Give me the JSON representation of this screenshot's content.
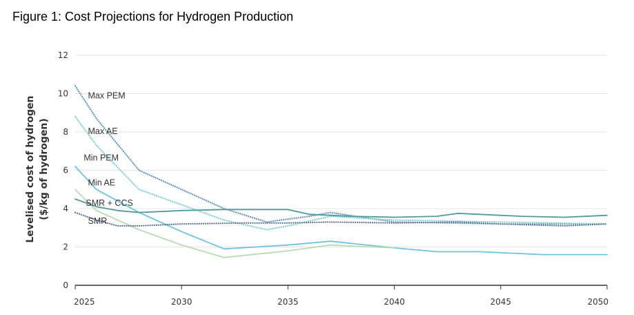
{
  "figure": {
    "title": "Figure 1: Cost Projections for Hydrogen Production"
  },
  "chart_data": {
    "type": "line",
    "title": "Figure 1: Cost Projections for Hydrogen Production",
    "xlabel": "",
    "ylabel": "Levelised cost of hydrogen",
    "ylabel_units": "($/kg of hydrogen)",
    "xlim": [
      2025,
      2050
    ],
    "ylim": [
      0,
      12
    ],
    "xticks": [
      2025,
      2030,
      2035,
      2040,
      2045,
      2050
    ],
    "yticks": [
      0,
      2,
      4,
      6,
      8,
      10,
      12
    ],
    "grid": "horizontal",
    "series": [
      {
        "name": "Max PEM",
        "color": "#5b8fbf",
        "style": "dotted",
        "x": [
          2025,
          2026,
          2028,
          2030,
          2032,
          2034,
          2036,
          2037,
          2040,
          2045,
          2050
        ],
        "values": [
          10.4,
          8.7,
          6.0,
          5.0,
          4.0,
          3.3,
          3.6,
          3.8,
          3.3,
          3.2,
          3.2
        ]
      },
      {
        "name": "Max AE",
        "color": "#7ecdc4",
        "style": "dotted",
        "x": [
          2025,
          2026,
          2028,
          2030,
          2032,
          2034,
          2035,
          2037,
          2040,
          2045,
          2050
        ],
        "values": [
          8.8,
          7.3,
          5.0,
          4.2,
          3.4,
          2.9,
          3.1,
          3.6,
          3.4,
          3.3,
          3.2
        ]
      },
      {
        "name": "Min AE",
        "color": "#6cc4de",
        "style": "solid",
        "x": [
          2025,
          2026,
          2028,
          2030,
          2032,
          2035,
          2037,
          2040,
          2042,
          2044,
          2047,
          2050
        ],
        "values": [
          6.2,
          5.0,
          3.8,
          2.8,
          1.9,
          2.1,
          2.3,
          1.95,
          1.75,
          1.75,
          1.6,
          1.6
        ]
      },
      {
        "name": "Min PEM",
        "color": "#b8dcb4",
        "style": "solid",
        "x": [
          2025,
          2026,
          2028,
          2030,
          2032,
          2035,
          2037,
          2040
        ],
        "values": [
          5.0,
          3.9,
          2.9,
          2.1,
          1.45,
          1.8,
          2.1,
          1.95
        ]
      },
      {
        "name": "SMR + CCS",
        "color": "#4e9a9a",
        "style": "solid",
        "x": [
          2025,
          2026,
          2027,
          2028,
          2030,
          2032,
          2035,
          2036,
          2038,
          2040,
          2042,
          2043,
          2044,
          2046,
          2048,
          2050
        ],
        "values": [
          4.5,
          4.1,
          3.9,
          3.8,
          3.9,
          3.95,
          3.95,
          3.7,
          3.6,
          3.55,
          3.6,
          3.75,
          3.7,
          3.6,
          3.55,
          3.65
        ]
      },
      {
        "name": "SMR",
        "color": "#5a6f8f",
        "style": "dotted",
        "x": [
          2025,
          2026,
          2027,
          2028,
          2030,
          2033,
          2035,
          2037,
          2040,
          2043,
          2045,
          2048,
          2050
        ],
        "values": [
          3.8,
          3.4,
          3.1,
          3.1,
          3.2,
          3.25,
          3.25,
          3.3,
          3.25,
          3.3,
          3.2,
          3.1,
          3.2
        ]
      }
    ],
    "annotations": [
      {
        "text": "Max PEM",
        "x": 2025.6,
        "y": 9.75
      },
      {
        "text": "Max AE",
        "x": 2025.6,
        "y": 7.9
      },
      {
        "text": "Min PEM",
        "x": 2025.4,
        "y": 6.5
      },
      {
        "text": "Min AE",
        "x": 2025.6,
        "y": 5.2
      },
      {
        "text": "SMR + CCS",
        "x": 2025.5,
        "y": 4.15
      },
      {
        "text": "SMR",
        "x": 2025.6,
        "y": 3.2
      }
    ]
  }
}
